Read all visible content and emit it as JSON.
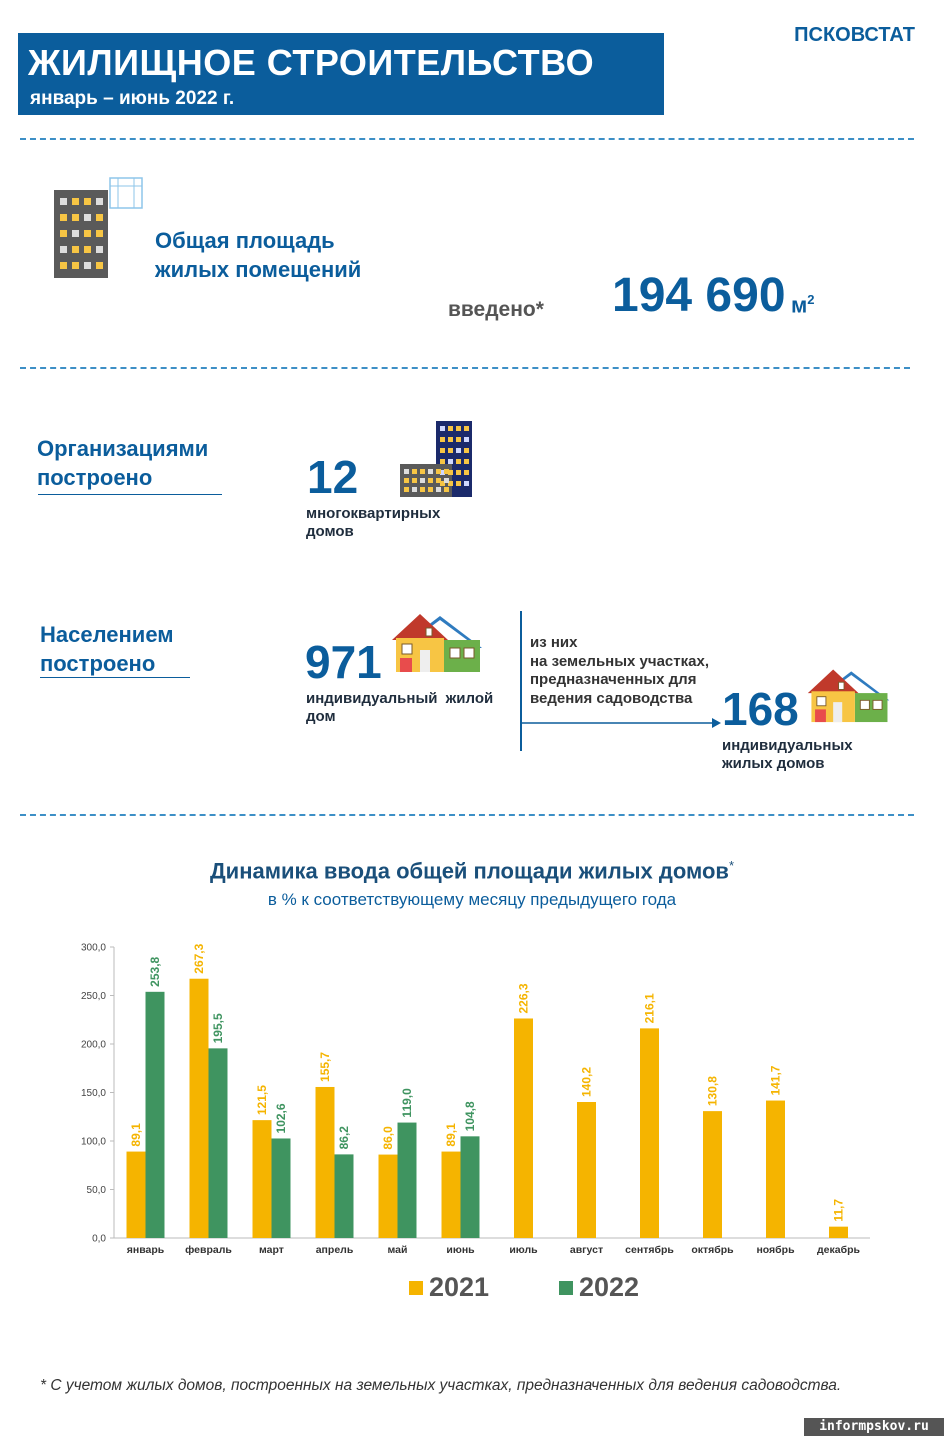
{
  "header": {
    "title": "ЖИЛИЩНОЕ СТРОИТЕЛЬСТВО",
    "period": "январь – июнь 2022 г.",
    "brand": "ПСКОВСТАТ"
  },
  "total_area": {
    "label_line1": "Общая площадь",
    "label_line2": "жилых помещений",
    "introduced_label": "введено*",
    "value": "194 690",
    "unit": "м",
    "unit_sup": "2"
  },
  "organizations": {
    "label_line1": "Организациями",
    "label_line2": "построено",
    "count": "12",
    "desc_line1": "многоквартирных",
    "desc_line2": "домов"
  },
  "population": {
    "label_line1": "Населением",
    "label_line2": "построено",
    "count": "971",
    "desc_line1": "индивидуальный жилой",
    "desc_line2": "дом",
    "garden_note_line1": "из них",
    "garden_note_line2": "на земельных участках,",
    "garden_note_line3": "предназначенных для",
    "garden_note_line4": "ведения садоводства",
    "garden_count": "168",
    "garden_desc_line1": "индивидуальных",
    "garden_desc_line2": "жилых домов"
  },
  "colors": {
    "brand_blue": "#0b5d9c",
    "series_2021": "#f5b400",
    "series_2022": "#3f9460"
  },
  "icons": [
    "apartment-building-icon",
    "buildings-icon",
    "houses-icon"
  ],
  "chart_data": {
    "type": "bar",
    "title": "Динамика ввода общей площади жилых домов",
    "title_mark": "*",
    "subtitle": "в % к соответствующему месяцу предыдущего года",
    "categories": [
      "январь",
      "февраль",
      "март",
      "апрель",
      "май",
      "июнь",
      "июль",
      "август",
      "сентябрь",
      "октябрь",
      "ноябрь",
      "декабрь"
    ],
    "series": [
      {
        "name": "2021",
        "values": [
          89.1,
          267.3,
          121.5,
          155.7,
          86.0,
          89.1,
          226.3,
          140.2,
          216.1,
          130.8,
          141.7,
          11.7
        ]
      },
      {
        "name": "2022",
        "values": [
          253.8,
          195.5,
          102.6,
          86.2,
          119.0,
          104.8,
          null,
          null,
          null,
          null,
          null,
          null
        ]
      }
    ],
    "ylim": [
      0,
      300
    ],
    "yticks": [
      "0,0",
      "50,0",
      "100,0",
      "150,0",
      "200,0",
      "250,0",
      "300,0"
    ],
    "legend_position": "bottom",
    "grid": false
  },
  "footnote": "* С учетом жилых домов, построенных на земельных участках, предназначенных для ведения садоводства.",
  "watermark": "informpskov.ru"
}
